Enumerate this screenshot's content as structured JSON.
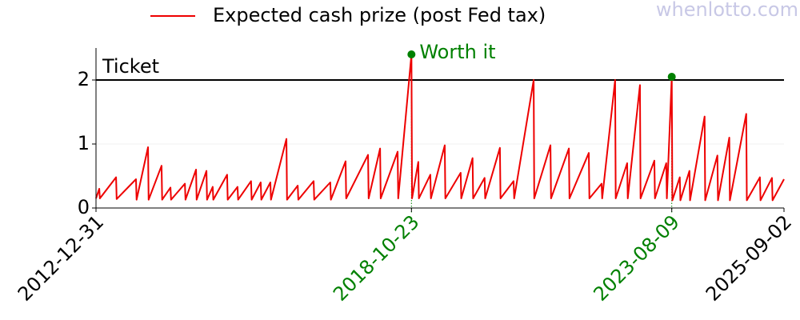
{
  "chart_data": {
    "type": "line",
    "watermark": "whenlotto.com",
    "xlim": [
      "2012-12-31",
      "2025-09-02"
    ],
    "xticks": [
      {
        "value": "2012-12-31",
        "label": "2012-12-31",
        "color": "#000000"
      },
      {
        "value": "2018-10-23",
        "label": "2018-10-23",
        "color": "#008000"
      },
      {
        "value": "2023-08-09",
        "label": "2023-08-09",
        "color": "#008000"
      },
      {
        "value": "2025-09-02",
        "label": "2025-09-02",
        "color": "#000000"
      }
    ],
    "ylim": [
      0,
      2.5
    ],
    "yticks": [
      0,
      1,
      2
    ],
    "grid": true,
    "legend": "top-center",
    "reference_line": {
      "y": 2,
      "label": "Ticket",
      "color": "#000000"
    },
    "annotations": [
      {
        "x": "2018-10-23",
        "y": 2.4,
        "label": "Worth it",
        "color": "#008000"
      },
      {
        "x": "2023-08-09",
        "y": 2.05,
        "color": "#008000"
      }
    ],
    "series": [
      {
        "name": "Expected cash prize (post Fed tax)",
        "color": "#ee0000",
        "x": [
          "2012-12-31",
          "2013-01-22",
          "2013-01-26",
          "2013-05-15",
          "2013-05-19",
          "2013-09-26",
          "2013-09-30",
          "2013-12-16",
          "2013-12-20",
          "2014-03-17",
          "2014-03-21",
          "2014-05-16",
          "2014-05-20",
          "2014-08-21",
          "2014-08-25",
          "2014-11-04",
          "2014-11-08",
          "2015-01-13",
          "2015-01-17",
          "2015-02-24",
          "2015-02-28",
          "2015-06-01",
          "2015-06-05",
          "2015-08-10",
          "2015-08-14",
          "2015-11-09",
          "2015-11-13",
          "2016-01-13",
          "2016-01-17",
          "2016-03-18",
          "2016-03-22",
          "2016-07-04",
          "2016-07-08",
          "2016-09-18",
          "2016-09-22",
          "2017-01-03",
          "2017-01-07",
          "2017-04-25",
          "2017-04-29",
          "2017-08-06",
          "2017-08-10",
          "2018-01-04",
          "2018-01-08",
          "2018-03-26",
          "2018-03-30",
          "2018-07-22",
          "2018-07-26",
          "2018-10-23",
          "2018-10-27",
          "2018-12-08",
          "2018-12-12",
          "2019-02-27",
          "2019-03-03",
          "2019-06-04",
          "2019-06-08",
          "2019-09-19",
          "2019-09-23",
          "2019-12-08",
          "2019-12-12",
          "2020-02-27",
          "2020-03-02",
          "2020-06-09",
          "2020-06-13",
          "2020-09-09",
          "2020-09-13",
          "2021-01-22",
          "2021-01-26",
          "2021-05-15",
          "2021-05-19",
          "2021-09-16",
          "2021-09-20",
          "2022-01-28",
          "2022-02-01",
          "2022-04-24",
          "2022-04-28",
          "2022-07-24",
          "2022-07-28",
          "2022-10-13",
          "2022-10-17",
          "2023-01-07",
          "2023-01-11",
          "2023-04-14",
          "2023-04-18",
          "2023-07-03",
          "2023-07-07",
          "2023-08-09",
          "2023-08-13",
          "2023-10-02",
          "2023-10-06",
          "2023-12-06",
          "2023-12-10",
          "2024-03-17",
          "2024-03-21",
          "2024-06-11",
          "2024-06-15",
          "2024-08-30",
          "2024-09-03",
          "2024-12-22",
          "2024-12-26",
          "2025-03-24",
          "2025-03-28",
          "2025-06-13",
          "2025-06-17",
          "2025-09-02"
        ],
        "values": [
          0.15,
          0.3,
          0.15,
          0.48,
          0.14,
          0.45,
          0.13,
          0.95,
          0.13,
          0.66,
          0.13,
          0.32,
          0.13,
          0.38,
          0.13,
          0.6,
          0.13,
          0.58,
          0.13,
          0.33,
          0.13,
          0.52,
          0.13,
          0.33,
          0.13,
          0.42,
          0.13,
          0.4,
          0.13,
          0.4,
          0.13,
          1.08,
          0.13,
          0.35,
          0.13,
          0.42,
          0.13,
          0.4,
          0.13,
          0.73,
          0.15,
          0.83,
          0.15,
          0.93,
          0.15,
          0.88,
          0.15,
          2.4,
          0.15,
          0.72,
          0.15,
          0.52,
          0.15,
          0.98,
          0.15,
          0.55,
          0.15,
          0.78,
          0.15,
          0.47,
          0.15,
          0.94,
          0.15,
          0.42,
          0.15,
          2.0,
          0.15,
          0.98,
          0.15,
          0.93,
          0.15,
          0.86,
          0.15,
          0.38,
          0.15,
          2.0,
          0.15,
          0.7,
          0.15,
          1.92,
          0.15,
          0.74,
          0.15,
          0.7,
          0.15,
          2.05,
          0.12,
          0.48,
          0.12,
          0.58,
          0.12,
          1.43,
          0.12,
          0.82,
          0.12,
          1.1,
          0.12,
          1.47,
          0.12,
          0.48,
          0.12,
          0.47,
          0.12,
          0.45
        ]
      }
    ]
  }
}
